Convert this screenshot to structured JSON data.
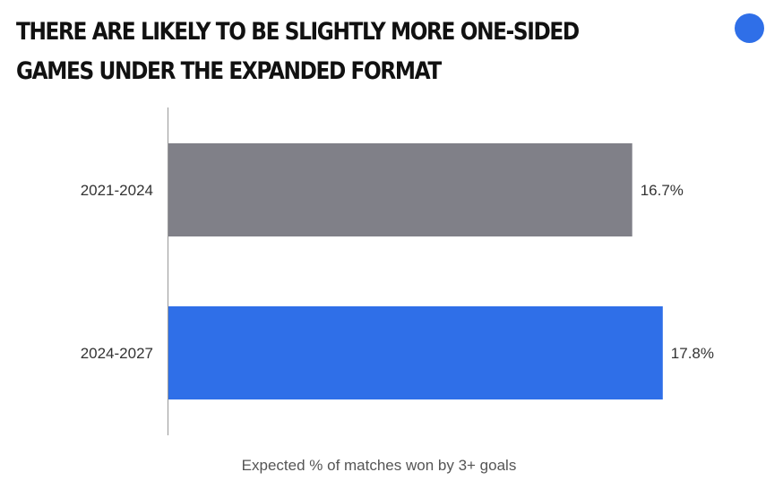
{
  "colors": {
    "brand": "#2f6fe8",
    "bar_previous": "#808088",
    "bar_expanded": "#2f6fe8",
    "axis": "#999999"
  },
  "chart_data": {
    "type": "bar",
    "orientation": "horizontal",
    "title": "THERE ARE LIKELY TO BE SLIGHTLY MORE ONE-SIDED GAMES UNDER THE EXPANDED FORMAT",
    "xlabel": "Expected % of matches won by 3+ goals",
    "ylabel": "",
    "categories": [
      "2021-2024",
      "2024-2027"
    ],
    "values": [
      16.7,
      17.8
    ],
    "value_labels": [
      "16.7%",
      "17.8%"
    ],
    "bar_colors": [
      "#808088",
      "#2f6fe8"
    ],
    "xlim": [
      0,
      20
    ],
    "grid": false,
    "legend": "none"
  }
}
